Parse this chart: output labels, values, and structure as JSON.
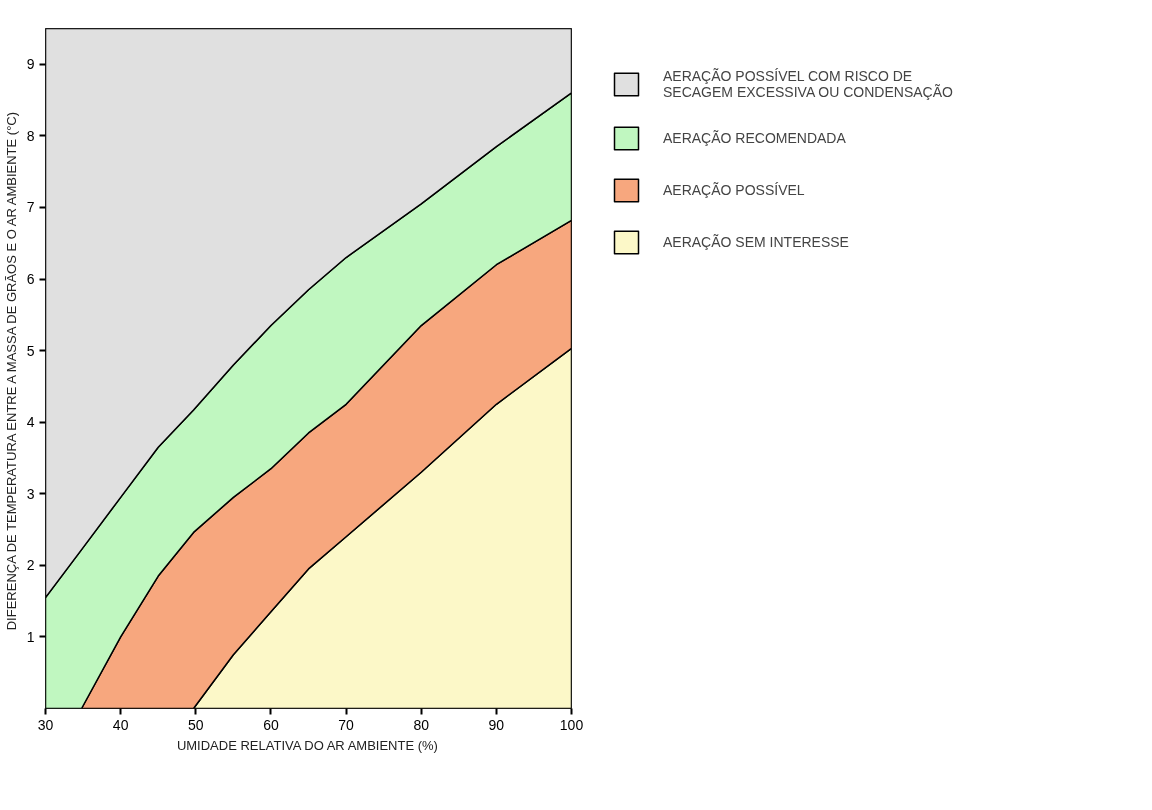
{
  "chart_data": {
    "type": "area",
    "stacked": true,
    "xlabel": "UMIDADE RELATIVA DO AR AMBIENTE (%)",
    "ylabel": "DIFERENÇA DE TEMPERATURA ENTRE A MASSA DE GRÃOS E O AR AMBIENTE (°C)",
    "xlim": [
      30,
      100
    ],
    "ylim": [
      0,
      9.5
    ],
    "xticks": [
      30,
      40,
      50,
      60,
      70,
      80,
      90,
      100
    ],
    "yticks": [
      1,
      2,
      3,
      4,
      5,
      6,
      7,
      8,
      9
    ],
    "grid": false,
    "legend": "right",
    "x": [
      30,
      34.8,
      40,
      45,
      49.7,
      55,
      60,
      65,
      70,
      80,
      90,
      100
    ],
    "series": [
      {
        "name": "AERAÇÃO SEM INTERESSE",
        "color": "#fcf8c8",
        "values": [
          0,
          0,
          0,
          0,
          0,
          0.75,
          1.35,
          1.95,
          2.4,
          3.3,
          4.25,
          5.03
        ]
      },
      {
        "name": "AERAÇÃO POSSÍVEL",
        "color": "#f7a77e",
        "values": [
          0,
          0,
          1.0,
          1.85,
          2.46,
          2.2,
          2.0,
          1.9,
          1.85,
          2.05,
          1.95,
          1.79
        ]
      },
      {
        "name": "AERAÇÃO RECOMENDADA",
        "color": "#c0f7c0",
        "values": [
          1.55,
          2.22,
          1.95,
          1.8,
          1.71,
          1.85,
          2.0,
          2.0,
          2.05,
          1.7,
          1.65,
          1.78
        ]
      },
      {
        "name": "AERAÇÃO POSSÍVEL COM RISCO DE\nSECAGEM EXCESSIVA OU CONDENSAÇÃO",
        "color": "#e0e0e0",
        "values": [
          7.95,
          7.28,
          6.55,
          5.85,
          5.33,
          4.7,
          4.15,
          3.65,
          3.2,
          2.45,
          1.65,
          0.9
        ]
      }
    ]
  }
}
